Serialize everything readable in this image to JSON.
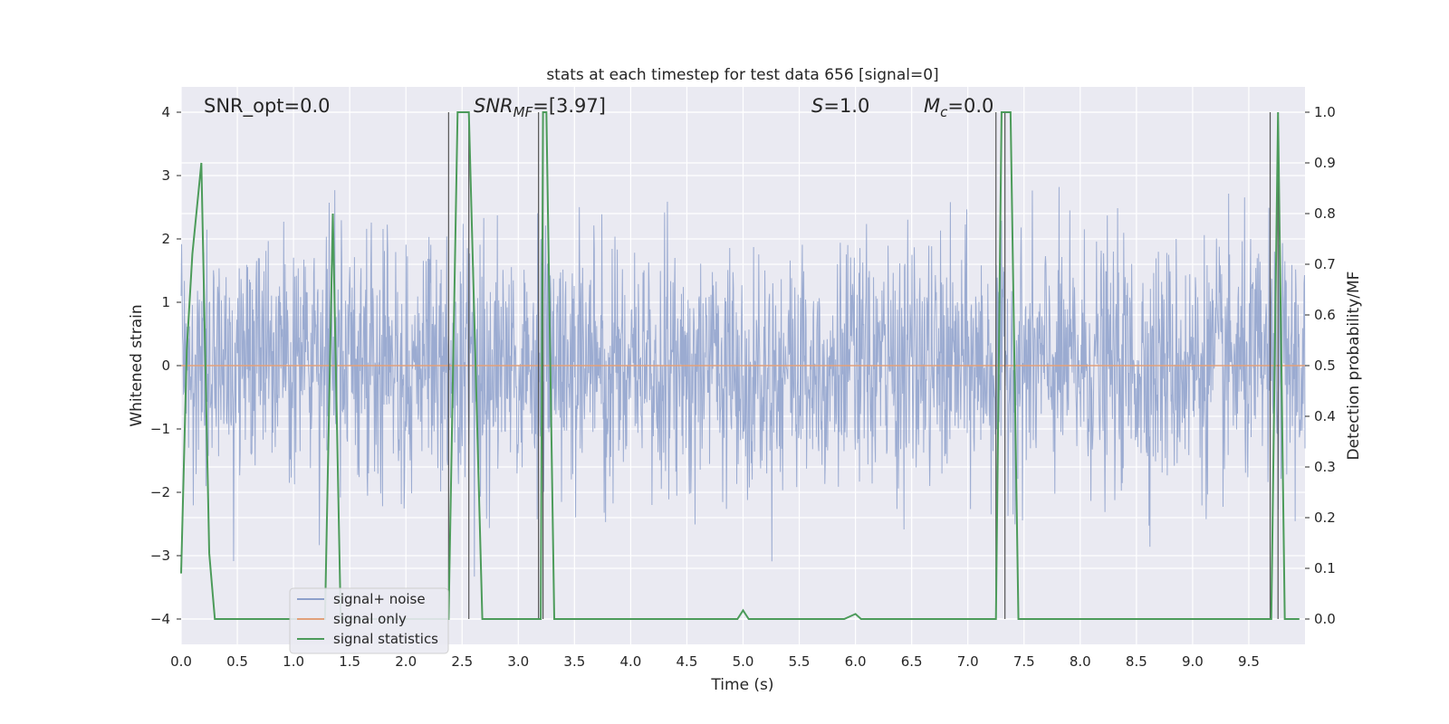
{
  "chart_data": {
    "type": "line",
    "title": "stats at each timestep for test data 656 [signal=0]",
    "xlabel": "Time (s)",
    "ylabel": "Whitened strain",
    "ylabel_right": "Detection probability/MF",
    "xlim": [
      0,
      10
    ],
    "ylim": [
      -4.4,
      4.4
    ],
    "ylim_right": [
      -0.05,
      1.05
    ],
    "x_ticks": [
      "0.0",
      "0.5",
      "1.0",
      "1.5",
      "2.0",
      "2.5",
      "3.0",
      "3.5",
      "4.0",
      "4.5",
      "5.0",
      "5.5",
      "6.0",
      "6.5",
      "7.0",
      "7.5",
      "8.0",
      "8.5",
      "9.0",
      "9.5"
    ],
    "y_ticks": [
      "−4",
      "−3",
      "−2",
      "−1",
      "0",
      "1",
      "2",
      "3",
      "4"
    ],
    "y_ticks_right": [
      "0.0",
      "0.1",
      "0.2",
      "0.3",
      "0.4",
      "0.5",
      "0.6",
      "0.7",
      "0.8",
      "0.9",
      "1.0"
    ],
    "grid": true,
    "legend_position": "lower-left",
    "annotations": {
      "snr_opt": "SNR_opt=0.0",
      "snr_mf_main": "SNR",
      "snr_mf_sub": "MF",
      "snr_mf_value": "=[3.97]",
      "s_main": "S",
      "s_value": "=1.0",
      "mc_main": "M",
      "mc_sub": "c",
      "mc_value": "=0.0"
    },
    "vertical_markers": [
      2.38,
      2.56,
      3.18,
      3.22,
      7.25,
      7.33,
      9.69,
      9.76
    ],
    "series": [
      {
        "name": "signal+ noise",
        "color": "#8da0cb",
        "kind": "noise",
        "amplitude_std": 0.95,
        "peak_range": [
          -3.7,
          3.9
        ]
      },
      {
        "name": "signal only",
        "color": "#e1a07a",
        "kind": "flat",
        "value": 0
      },
      {
        "name": "signal statistics",
        "color": "#4c9b5a",
        "axis": "right",
        "x": [
          0.0,
          0.05,
          0.1,
          0.18,
          0.25,
          0.3,
          0.35,
          1.2,
          1.28,
          1.35,
          1.42,
          1.5,
          2.3,
          2.38,
          2.46,
          2.56,
          2.68,
          3.15,
          3.18,
          3.2,
          3.22,
          3.25,
          3.32,
          4.95,
          5.0,
          5.05,
          5.9,
          6.0,
          6.05,
          7.25,
          7.3,
          7.38,
          7.45,
          9.7,
          9.76,
          9.82,
          9.9,
          9.95
        ],
        "y": [
          0.09,
          0.53,
          0.72,
          0.9,
          0.13,
          0.0,
          0.0,
          0.0,
          0.0,
          0.8,
          0.0,
          0.0,
          0.0,
          0.0,
          1.0,
          1.0,
          0.0,
          0.0,
          0.0,
          0.0,
          1.0,
          1.0,
          0.0,
          0.0,
          0.017,
          0.0,
          0.0,
          0.01,
          0.0,
          0.0,
          1.0,
          1.0,
          0.0,
          0.0,
          1.0,
          0.0,
          0.0,
          0.0
        ]
      }
    ]
  }
}
